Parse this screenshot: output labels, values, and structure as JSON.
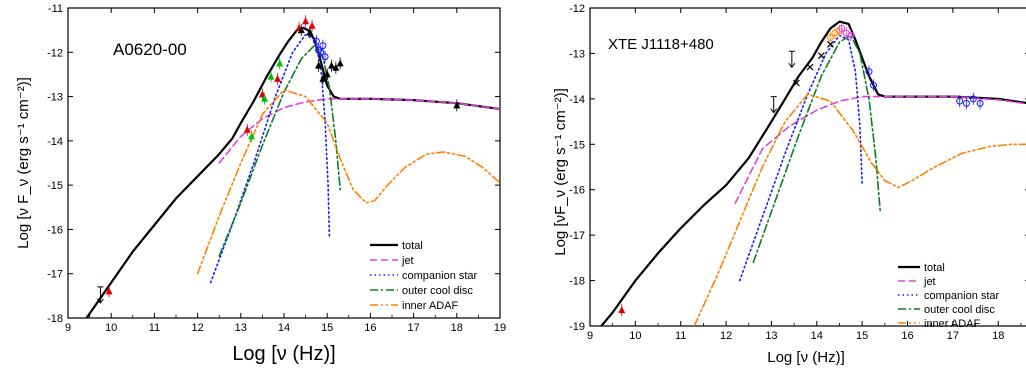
{
  "chart_data": [
    {
      "type": "line",
      "title": "A0620-00",
      "xlabel": "Log [ν (Hz)]",
      "ylabel": "Log [ν F_ν (erg s⁻¹ cm⁻²)]",
      "xlim": [
        9,
        19
      ],
      "ylim": [
        -18,
        -11
      ],
      "xticks": [
        "9",
        "10",
        "11",
        "12",
        "13",
        "14",
        "15",
        "16",
        "17",
        "18",
        "19"
      ],
      "yticks": [
        "-18",
        "-17",
        "-16",
        "-15",
        "-14",
        "-13",
        "-12",
        "-11"
      ],
      "legend_position": "bottom-right",
      "legend": [
        "total",
        "jet",
        "companion star",
        "outer cool disc",
        "inner ADAF"
      ],
      "series": [
        {
          "name": "total",
          "color": "#000000",
          "style": "solid",
          "x": [
            9.0,
            9.5,
            10.0,
            10.5,
            11.0,
            11.5,
            12.0,
            12.5,
            12.8,
            13.0,
            13.3,
            13.6,
            13.9,
            14.1,
            14.3,
            14.45,
            14.55,
            14.7,
            14.85,
            15.0,
            15.15,
            15.3,
            15.6,
            16.0,
            17.0,
            18.0,
            19.0
          ],
          "y": [
            -18.6,
            -17.9,
            -17.2,
            -16.5,
            -15.9,
            -15.3,
            -14.8,
            -14.3,
            -13.95,
            -13.6,
            -13.1,
            -12.55,
            -12.05,
            -11.75,
            -11.5,
            -11.45,
            -11.5,
            -11.7,
            -12.2,
            -12.75,
            -13.0,
            -13.05,
            -13.05,
            -13.05,
            -13.08,
            -13.15,
            -13.28
          ]
        },
        {
          "name": "jet",
          "color": "#e040e0",
          "style": "dash",
          "x": [
            12.5,
            13.0,
            13.5,
            14.0,
            14.5,
            15.0,
            15.5,
            16.0,
            17.0,
            18.0,
            19.0
          ],
          "y": [
            -14.5,
            -13.9,
            -13.5,
            -13.25,
            -13.12,
            -13.05,
            -13.05,
            -13.05,
            -13.08,
            -13.15,
            -13.28
          ]
        },
        {
          "name": "companion star",
          "color": "#1a1aff",
          "style": "dot",
          "x": [
            12.3,
            12.8,
            13.3,
            13.8,
            14.2,
            14.5,
            14.7,
            14.85,
            14.95,
            15.02,
            15.05
          ],
          "y": [
            -17.2,
            -15.9,
            -14.5,
            -13.0,
            -12.0,
            -11.6,
            -11.7,
            -12.3,
            -13.5,
            -15.0,
            -16.2
          ]
        },
        {
          "name": "outer cool disc",
          "color": "#0a7d28",
          "style": "dashdot",
          "x": [
            12.5,
            13.0,
            13.5,
            14.0,
            14.4,
            14.7,
            14.9,
            15.05,
            15.2,
            15.3
          ],
          "y": [
            -16.6,
            -15.4,
            -14.1,
            -12.9,
            -12.15,
            -11.85,
            -12.1,
            -12.8,
            -14.0,
            -15.1
          ]
        },
        {
          "name": "inner ADAF",
          "color": "#ff8000",
          "style": "dashdotdot",
          "x": [
            12.0,
            12.5,
            13.0,
            13.5,
            14.0,
            14.5,
            15.0,
            15.3,
            15.6,
            15.9,
            16.1,
            16.4,
            16.8,
            17.3,
            17.7,
            18.2,
            18.6,
            19.0
          ],
          "y": [
            -17.0,
            -15.7,
            -14.5,
            -13.4,
            -12.85,
            -13.0,
            -13.6,
            -14.4,
            -15.1,
            -15.4,
            -15.35,
            -15.0,
            -14.6,
            -14.3,
            -14.25,
            -14.35,
            -14.6,
            -14.95
          ]
        }
      ],
      "observations": [
        {
          "color": "#e00000",
          "marker": "triangle",
          "x": [
            9.95,
            13.15,
            13.5,
            13.85,
            14.35,
            14.5,
            14.65
          ],
          "y": [
            -17.4,
            -13.75,
            -12.95,
            -12.6,
            -11.45,
            -11.3,
            -11.4
          ]
        },
        {
          "color": "#00c000",
          "marker": "triangle",
          "x": [
            13.25,
            13.55,
            13.7,
            13.9
          ],
          "y": [
            -13.9,
            -13.05,
            -12.55,
            -12.25
          ]
        },
        {
          "color": "#1a1aff",
          "marker": "circle",
          "x": [
            14.75,
            14.8,
            14.85,
            14.9,
            14.95
          ],
          "y": [
            -11.75,
            -11.95,
            -12.0,
            -11.85,
            -12.1
          ]
        },
        {
          "color": "#000000",
          "marker": "triangle",
          "x": [
            14.4,
            14.6,
            14.8,
            14.9,
            15.0,
            15.1,
            15.2,
            15.3,
            18.0
          ],
          "y": [
            -11.5,
            -11.55,
            -12.3,
            -12.6,
            -12.5,
            -12.3,
            -12.35,
            -12.25,
            -13.2
          ]
        },
        {
          "color": "#000000",
          "marker": "upper-limit",
          "x": [
            9.75
          ],
          "y": [
            -17.5
          ]
        }
      ]
    },
    {
      "type": "line",
      "title": "XTE J1118+480",
      "xlabel": "Log [ν (Hz)]",
      "ylabel": "Log [νF_ν (erg s⁻¹ cm⁻²)]",
      "xlim": [
        9,
        18.7
      ],
      "ylim": [
        -19,
        -12
      ],
      "xticks": [
        "9",
        "10",
        "11",
        "12",
        "13",
        "14",
        "15",
        "16",
        "17",
        "18"
      ],
      "yticks": [
        "-19",
        "-18",
        "-17",
        "-16",
        "-15",
        "-14",
        "-13",
        "-12"
      ],
      "legend_position": "bottom-right",
      "legend": [
        "total",
        "jet",
        "companion star",
        "outer cool disc",
        "inner ADAF"
      ],
      "series": [
        {
          "name": "total",
          "color": "#000000",
          "style": "solid",
          "x": [
            9.0,
            9.5,
            10.0,
            10.5,
            11.0,
            11.5,
            12.0,
            12.5,
            13.0,
            13.3,
            13.6,
            13.9,
            14.1,
            14.3,
            14.5,
            14.7,
            14.85,
            15.0,
            15.15,
            15.35,
            15.5,
            16.0,
            17.0,
            18.0,
            18.7
          ],
          "y": [
            -19.3,
            -18.7,
            -18.0,
            -17.4,
            -16.85,
            -16.35,
            -15.9,
            -15.3,
            -14.5,
            -14.0,
            -13.5,
            -13.1,
            -12.75,
            -12.45,
            -12.3,
            -12.35,
            -12.7,
            -13.1,
            -13.5,
            -13.9,
            -13.95,
            -13.95,
            -13.95,
            -14.0,
            -14.1
          ]
        },
        {
          "name": "jet",
          "color": "#e040e0",
          "style": "dash",
          "x": [
            12.2,
            12.8,
            13.4,
            14.0,
            14.5,
            15.0,
            15.5,
            16.0,
            17.0,
            18.0,
            18.7
          ],
          "y": [
            -16.3,
            -15.1,
            -14.6,
            -14.25,
            -14.05,
            -13.95,
            -13.95,
            -13.95,
            -13.95,
            -14.02,
            -14.12
          ]
        },
        {
          "name": "companion star",
          "color": "#1a1aff",
          "style": "dot",
          "x": [
            12.3,
            12.8,
            13.3,
            13.8,
            14.2,
            14.5,
            14.7,
            14.85,
            14.95,
            15.0
          ],
          "y": [
            -18.0,
            -16.6,
            -15.2,
            -13.9,
            -13.0,
            -12.6,
            -12.7,
            -13.4,
            -14.6,
            -15.9
          ]
        },
        {
          "name": "outer cool disc",
          "color": "#0a7d28",
          "style": "dashdot",
          "x": [
            12.6,
            13.1,
            13.6,
            14.1,
            14.5,
            14.75,
            14.95,
            15.15,
            15.3,
            15.4
          ],
          "y": [
            -17.6,
            -16.2,
            -14.8,
            -13.5,
            -12.75,
            -12.6,
            -13.0,
            -14.0,
            -15.3,
            -16.5
          ]
        },
        {
          "name": "inner ADAF",
          "color": "#ff8000",
          "style": "dashdotdot",
          "x": [
            11.3,
            11.8,
            12.3,
            12.8,
            13.3,
            13.8,
            14.3,
            14.8,
            15.2,
            15.5,
            15.8,
            16.1,
            16.6,
            17.2,
            17.8,
            18.3,
            18.7
          ],
          "y": [
            -19.0,
            -17.9,
            -16.7,
            -15.5,
            -14.5,
            -13.9,
            -14.05,
            -14.7,
            -15.4,
            -15.8,
            -15.95,
            -15.8,
            -15.5,
            -15.2,
            -15.05,
            -15.0,
            -15.0
          ]
        }
      ],
      "observations": [
        {
          "color": "#e00000",
          "marker": "triangle",
          "x": [
            9.7
          ],
          "y": [
            -18.65
          ]
        },
        {
          "color": "#000000",
          "marker": "x",
          "x": [
            13.55,
            13.85,
            14.1,
            14.3
          ],
          "y": [
            -13.65,
            -13.3,
            -13.05,
            -12.8
          ]
        },
        {
          "color": "#ff8000",
          "marker": "circle",
          "x": [
            14.3,
            14.4,
            14.5
          ],
          "y": [
            -12.65,
            -12.55,
            -12.5
          ]
        },
        {
          "color": "#e040e0",
          "marker": "circle",
          "x": [
            14.55,
            14.65,
            14.75
          ],
          "y": [
            -12.45,
            -12.55,
            -12.6
          ]
        },
        {
          "color": "#1a1aff",
          "marker": "circle",
          "x": [
            15.15,
            15.25,
            17.15,
            17.3,
            17.45,
            17.6
          ],
          "y": [
            -13.4,
            -13.7,
            -14.05,
            -14.1,
            -14.0,
            -14.1
          ]
        },
        {
          "color": "#000000",
          "marker": "upper-limit",
          "x": [
            13.05,
            13.45
          ],
          "y": [
            -14.15,
            -13.15
          ]
        }
      ]
    }
  ]
}
